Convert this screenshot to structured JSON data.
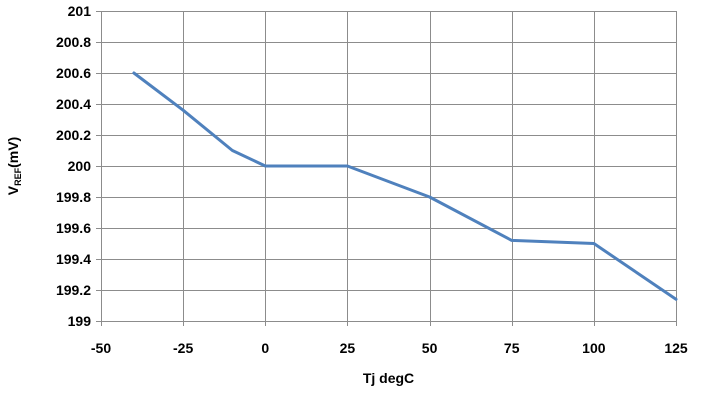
{
  "chart_data": {
    "type": "line",
    "title": "",
    "xlabel": "Tj degC",
    "ylabel": {
      "main": "V",
      "sub": "REF",
      "unit": "(mV)"
    },
    "xlim": [
      -50,
      125
    ],
    "ylim": [
      199,
      201
    ],
    "x_ticks": [
      "-50",
      "-25",
      "0",
      "25",
      "50",
      "75",
      "100",
      "125"
    ],
    "x_tick_values": [
      -50,
      -25,
      0,
      25,
      50,
      75,
      100,
      125
    ],
    "y_ticks": [
      "201",
      "200.8",
      "200.6",
      "200.4",
      "200.2",
      "200",
      "199.8",
      "199.6",
      "199.4",
      "199.2",
      "199"
    ],
    "y_tick_values": [
      201,
      200.8,
      200.6,
      200.4,
      200.2,
      200,
      199.8,
      199.6,
      199.4,
      199.2,
      199
    ],
    "grid": true,
    "series": [
      {
        "x": [
          -40,
          -25,
          -10,
          0,
          25,
          50,
          75,
          100,
          125
        ],
        "values": [
          200.6,
          200.36,
          200.1,
          200.0,
          200.0,
          199.8,
          199.52,
          199.5,
          199.14
        ],
        "color": "#4f81bd"
      }
    ]
  }
}
